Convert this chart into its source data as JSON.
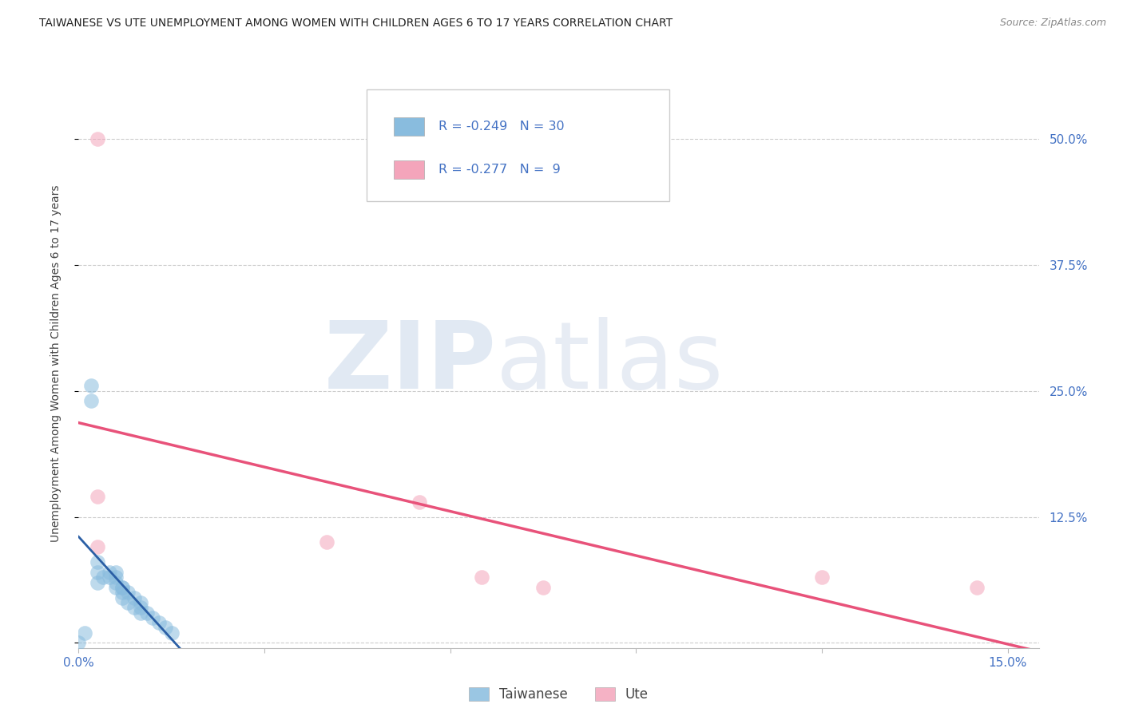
{
  "title": "TAIWANESE VS UTE UNEMPLOYMENT AMONG WOMEN WITH CHILDREN AGES 6 TO 17 YEARS CORRELATION CHART",
  "source": "Source: ZipAtlas.com",
  "ylabel": "Unemployment Among Women with Children Ages 6 to 17 years",
  "xlim": [
    0.0,
    0.155
  ],
  "ylim": [
    -0.005,
    0.56
  ],
  "xtick_pos": [
    0.0,
    0.03,
    0.06,
    0.09,
    0.12,
    0.15
  ],
  "xticklabels": [
    "0.0%",
    "",
    "",
    "",
    "",
    "15.0%"
  ],
  "ytick_positions": [
    0.0,
    0.125,
    0.25,
    0.375,
    0.5
  ],
  "yticklabels_right": [
    "",
    "12.5%",
    "25.0%",
    "37.5%",
    "50.0%"
  ],
  "taiwanese_color": "#89bcde",
  "ute_color": "#f4a5bb",
  "regression_taiwanese_color": "#2b5fa5",
  "regression_ute_color": "#e8527a",
  "tick_color": "#4472c4",
  "legend_text_color": "#4472c4",
  "legend_R_taiwanese": "-0.249",
  "legend_N_taiwanese": "30",
  "legend_R_ute": "-0.277",
  "legend_N_ute": " 9",
  "grid_color": "#cccccc",
  "taiwanese_x": [
    0.003,
    0.003,
    0.003,
    0.004,
    0.005,
    0.005,
    0.006,
    0.006,
    0.006,
    0.006,
    0.007,
    0.007,
    0.007,
    0.007,
    0.008,
    0.008,
    0.009,
    0.009,
    0.01,
    0.01,
    0.01,
    0.011,
    0.012,
    0.013,
    0.014,
    0.015,
    0.002,
    0.002,
    0.001,
    0.0
  ],
  "taiwanese_y": [
    0.08,
    0.07,
    0.06,
    0.065,
    0.07,
    0.065,
    0.065,
    0.06,
    0.055,
    0.07,
    0.055,
    0.05,
    0.055,
    0.045,
    0.05,
    0.04,
    0.045,
    0.035,
    0.04,
    0.03,
    0.035,
    0.03,
    0.025,
    0.02,
    0.015,
    0.01,
    0.255,
    0.24,
    0.01,
    0.0
  ],
  "ute_x": [
    0.003,
    0.003,
    0.003,
    0.04,
    0.055,
    0.065,
    0.075,
    0.12,
    0.145
  ],
  "ute_y": [
    0.5,
    0.145,
    0.095,
    0.1,
    0.14,
    0.065,
    0.055,
    0.065,
    0.055
  ]
}
